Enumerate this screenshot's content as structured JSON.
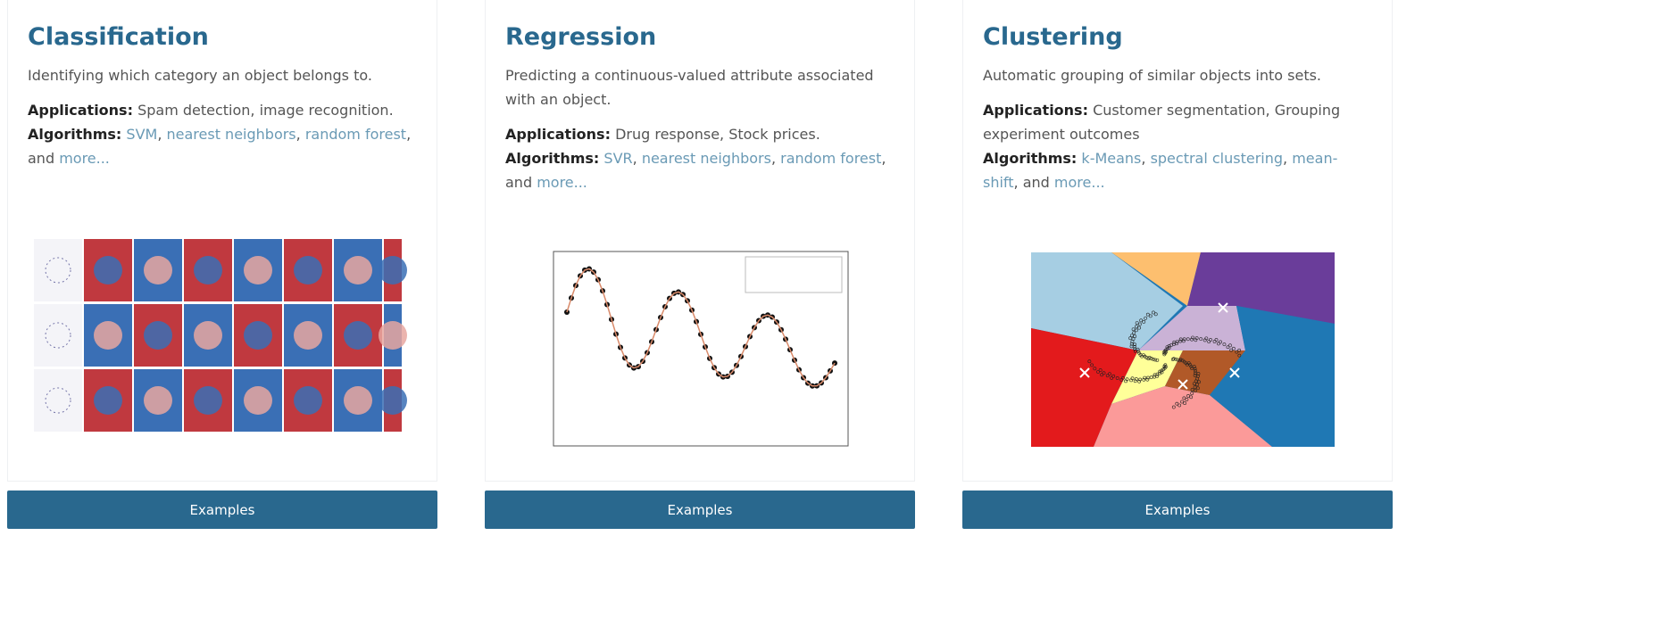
{
  "cards": [
    {
      "title": "Classification",
      "description": "Identifying which category an object belongs to.",
      "applications_label": "Applications:",
      "applications": "Spam detection, image recognition.",
      "algorithms_label": "Algorithms:",
      "algorithms": [
        {
          "text": "SVM",
          "link": true
        },
        {
          "text": ", ",
          "link": false
        },
        {
          "text": "nearest neighbors",
          "link": true
        },
        {
          "text": ", ",
          "link": false
        },
        {
          "text": "random forest",
          "link": true
        },
        {
          "text": ", and ",
          "link": false
        },
        {
          "text": "more...",
          "link": true
        }
      ],
      "button": "Examples"
    },
    {
      "title": "Regression",
      "description": "Predicting a continuous-valued attribute associated with an object.",
      "applications_label": "Applications:",
      "applications": "Drug response, Stock prices.",
      "algorithms_label": "Algorithms:",
      "algorithms": [
        {
          "text": "SVR",
          "link": true
        },
        {
          "text": ", ",
          "link": false
        },
        {
          "text": "nearest neighbors",
          "link": true
        },
        {
          "text": ", ",
          "link": false
        },
        {
          "text": "random forest",
          "link": true
        },
        {
          "text": ", and ",
          "link": false
        },
        {
          "text": "more...",
          "link": true
        }
      ],
      "button": "Examples"
    },
    {
      "title": "Clustering",
      "description": "Automatic grouping of similar objects into sets.",
      "applications_label": "Applications:",
      "applications": "Customer segmentation, Grouping experiment outcomes",
      "algorithms_label": "Algorithms:",
      "algorithms": [
        {
          "text": "k-Means",
          "link": true
        },
        {
          "text": ", ",
          "link": false
        },
        {
          "text": "spectral clustering",
          "link": true
        },
        {
          "text": ", ",
          "link": false
        },
        {
          "text": "mean-shift",
          "link": true
        },
        {
          "text": ", and ",
          "link": false
        },
        {
          "text": "more...",
          "link": true
        }
      ],
      "button": "Examples"
    }
  ]
}
